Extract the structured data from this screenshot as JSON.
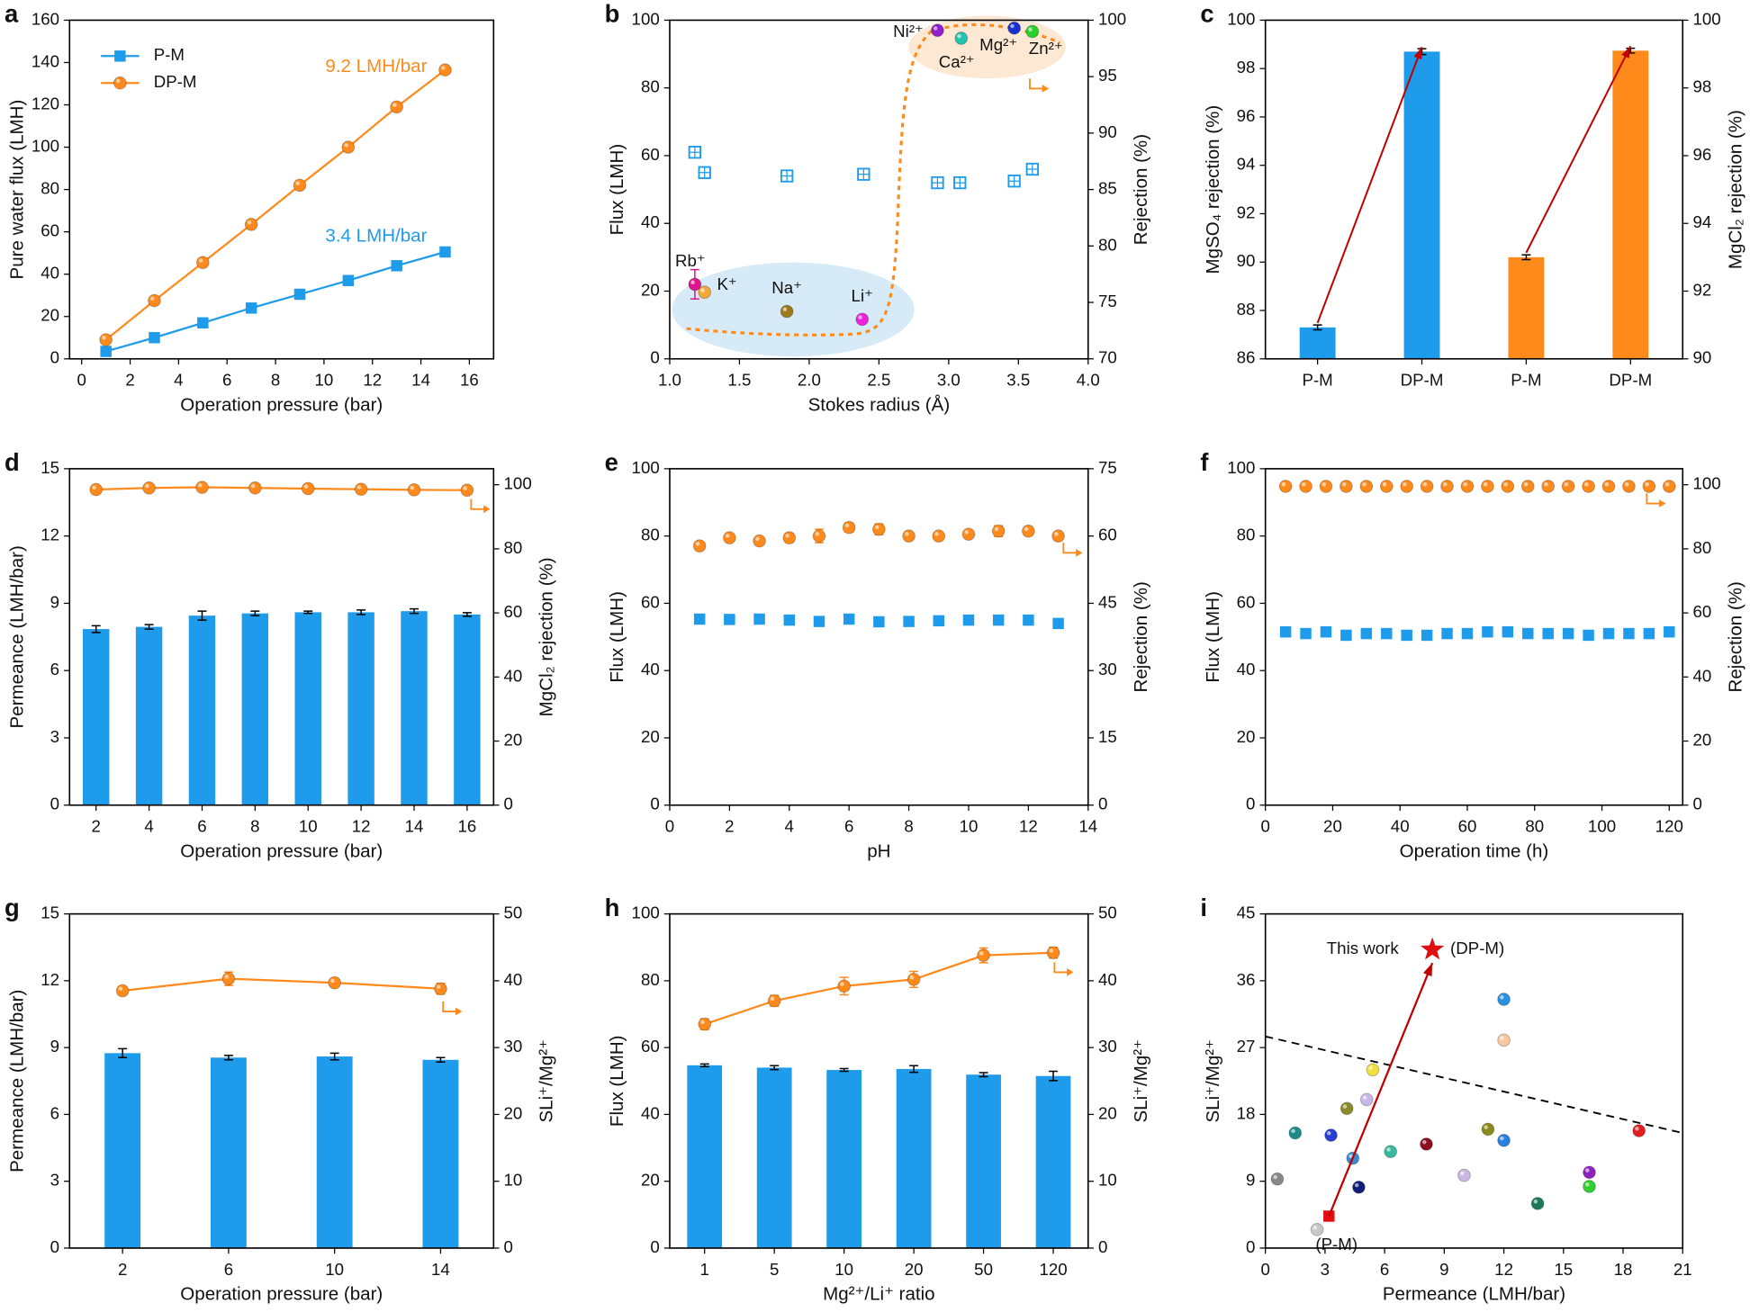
{
  "chart_data": [
    {
      "type": "line",
      "panel": "a",
      "xlabel": "Operation pressure (bar)",
      "ylabel": "Pure water flux (LMH)",
      "x": [
        1,
        3,
        5,
        7,
        9,
        11,
        13,
        15
      ],
      "xlim": [
        -0.5,
        17
      ],
      "xticks": [
        0,
        2,
        4,
        6,
        8,
        10,
        12,
        14,
        16
      ],
      "ylim": [
        0,
        160
      ],
      "yticks": [
        0,
        20,
        40,
        60,
        80,
        100,
        120,
        140,
        160
      ],
      "legend": "upper left",
      "series": [
        {
          "name": "P-M",
          "color": "#1e9bea",
          "marker": "s",
          "values": [
            3.5,
            10,
            17,
            24,
            30.5,
            37,
            44,
            50.5
          ]
        },
        {
          "name": "DP-M",
          "color": "#ff8a1c",
          "marker": "o",
          "values": [
            9,
            27.5,
            45.5,
            63.5,
            82,
            100,
            119,
            136.5
          ]
        }
      ],
      "annotations": [
        {
          "text": "9.2 LMH/bar",
          "color": "#ff8a1c"
        },
        {
          "text": "3.4 LMH/bar",
          "color": "#1e9bea"
        }
      ]
    },
    {
      "type": "scatter",
      "panel": "b",
      "xlabel": "Stokes radius (Å)",
      "ylabel": "Flux (LMH)",
      "y2label": "Rejection (%)",
      "xlim": [
        1.0,
        4.0
      ],
      "xticks": [
        {
          "value": 1.0,
          "label": "1.0"
        },
        {
          "value": 1.5,
          "label": "1.5"
        },
        {
          "value": 2.0,
          "label": "2.0"
        },
        {
          "value": 2.5,
          "label": "2.5"
        },
        {
          "value": 3.0,
          "label": "3.0"
        },
        {
          "value": 3.5,
          "label": "3.5"
        },
        {
          "value": 4.0,
          "label": "4.0"
        }
      ],
      "ylim": [
        0,
        100
      ],
      "yticks": [
        0,
        20,
        40,
        60,
        80,
        100
      ],
      "y2lim": [
        70,
        100
      ],
      "y2ticks": [
        70,
        75,
        80,
        85,
        90,
        95,
        100
      ],
      "series": [
        {
          "color": "#1e9bea",
          "marker": "s-open",
          "x": [
            1.18,
            1.25,
            1.84,
            2.39,
            2.92,
            3.08,
            3.47,
            3.6
          ],
          "values": [
            61,
            55,
            54,
            54.5,
            52,
            52,
            52.5,
            56
          ]
        },
        {
          "axis": "y2",
          "marker": "o",
          "x": [
            1.18,
            1.25,
            1.84,
            2.38,
            2.92,
            3.09,
            3.47,
            3.6
          ],
          "values": [
            76.6,
            75.9,
            74.2,
            73.5,
            99.1,
            98.4,
            99.3,
            99.0
          ],
          "errors": [
            1.3,
            null,
            null,
            null,
            null,
            null,
            null,
            null
          ],
          "colors": [
            "#e0158c",
            "#f2a93b",
            "#9c7a1a",
            "#ee22dd",
            "#8e1fcf",
            "#22c4b0",
            "#1a2fd0",
            "#2bd12b"
          ],
          "labels": [
            "Rb⁺",
            "K⁺",
            "Na⁺",
            "Li⁺",
            "Ni²⁺",
            "Ca²⁺",
            "Mg²⁺",
            "Zn²⁺"
          ]
        }
      ]
    },
    {
      "type": "bar",
      "panel": "c",
      "ylabel": "MgSO₄ rejection (%)",
      "y2label": "MgCl₂ rejection (%)",
      "categories": [
        "P-M",
        "DP-M",
        "P-M",
        "DP-M"
      ],
      "ylim": [
        86,
        100
      ],
      "yticks": [
        86,
        88,
        90,
        92,
        94,
        96,
        98,
        100
      ],
      "y2lim": [
        90,
        100
      ],
      "y2ticks": [
        90,
        92,
        94,
        96,
        98,
        100
      ],
      "series": [
        {
          "color": "#1e9bea",
          "values": [
            87.3,
            98.7,
            null,
            null
          ],
          "errors": [
            0.1,
            0.12,
            null,
            null
          ]
        },
        {
          "color": "#ff8a1c",
          "axis": "y2",
          "values": [
            null,
            null,
            93.0,
            99.1
          ],
          "errors": [
            null,
            null,
            0.07,
            0.07
          ]
        }
      ]
    },
    {
      "type": "bar",
      "panel": "d",
      "xlabel": "Operation pressure (bar)",
      "ylabel": "Permeance (LMH/bar)",
      "y2label": "MgCl₂ rejection (%)",
      "categories": [
        "2",
        "4",
        "6",
        "8",
        "10",
        "12",
        "14",
        "16"
      ],
      "ylim": [
        0,
        15
      ],
      "yticks": [
        0,
        3,
        6,
        9,
        12,
        15
      ],
      "y2lim": [
        0,
        105
      ],
      "y2ticks": [
        0,
        20,
        40,
        60,
        80,
        100
      ],
      "series": [
        {
          "color": "#1e9bea",
          "values": [
            7.85,
            7.95,
            8.45,
            8.55,
            8.6,
            8.6,
            8.65,
            8.5
          ],
          "errors": [
            0.15,
            0.1,
            0.2,
            0.1,
            0.05,
            0.1,
            0.1,
            0.08
          ]
        },
        {
          "type": "line",
          "marker": "o",
          "color": "#ff8a1c",
          "axis": "y2",
          "values": [
            98.5,
            99,
            99.2,
            99,
            98.8,
            98.6,
            98.4,
            98.3
          ]
        }
      ]
    },
    {
      "type": "scatter",
      "panel": "e",
      "xlabel": "pH",
      "ylabel": "Flux (LMH)",
      "y2label": "Rejection (%)",
      "x": [
        1,
        2,
        3,
        4,
        5,
        6,
        7,
        8,
        9,
        10,
        11,
        12,
        13
      ],
      "xlim": [
        0,
        14
      ],
      "xticks": [
        0,
        2,
        4,
        6,
        8,
        10,
        12,
        14
      ],
      "ylim": [
        0,
        100
      ],
      "yticks": [
        0,
        20,
        40,
        60,
        80,
        100
      ],
      "y2lim": [
        0,
        75
      ],
      "y2ticks": [
        0,
        15,
        30,
        45,
        60,
        75
      ],
      "series": [
        {
          "color": "#1e9bea",
          "marker": "s",
          "values": [
            55.3,
            55.2,
            55.3,
            55,
            54.6,
            55.3,
            54.5,
            54.6,
            54.8,
            55,
            55,
            55,
            54
          ]
        },
        {
          "color": "#ff8a1c",
          "marker": "o",
          "axis": "y2",
          "values": [
            57.8,
            59.6,
            58.9,
            59.6,
            60,
            61.9,
            61.5,
            60,
            60,
            60.4,
            61.1,
            61.1,
            60
          ],
          "errors": [
            0.5,
            0.6,
            0.5,
            1,
            1.5,
            1,
            1.2,
            0.5,
            0.5,
            0.5,
            1.2,
            1,
            0.5
          ]
        }
      ]
    },
    {
      "type": "scatter",
      "panel": "f",
      "xlabel": "Operation time (h)",
      "ylabel": "Flux (LMH)",
      "y2label": "Rejection (%)",
      "x": [
        6,
        12,
        18,
        24,
        30,
        36,
        42,
        48,
        54,
        60,
        66,
        72,
        78,
        84,
        90,
        96,
        102,
        108,
        114,
        120
      ],
      "xlim": [
        0,
        124
      ],
      "xticks": [
        0,
        20,
        40,
        60,
        80,
        100,
        120
      ],
      "ylim": [
        0,
        100
      ],
      "yticks": [
        0,
        20,
        40,
        60,
        80,
        100
      ],
      "y2lim": [
        0,
        105
      ],
      "y2ticks": [
        0,
        20,
        40,
        60,
        80,
        100
      ],
      "series": [
        {
          "color": "#1e9bea",
          "marker": "s",
          "values": [
            51.5,
            51,
            51.5,
            50.5,
            51,
            51,
            50.5,
            50.5,
            51,
            51,
            51.5,
            51.5,
            51,
            51,
            51,
            50.5,
            51,
            51,
            51,
            51.5
          ]
        },
        {
          "color": "#ff8a1c",
          "marker": "o",
          "axis": "y2",
          "values": [
            99.5,
            99.5,
            99.5,
            99.5,
            99.5,
            99.5,
            99.5,
            99.5,
            99.5,
            99.5,
            99.5,
            99.5,
            99.5,
            99.5,
            99.5,
            99.5,
            99.5,
            99.5,
            99.5,
            99.5
          ]
        }
      ]
    },
    {
      "type": "bar",
      "panel": "g",
      "xlabel": "Operation pressure (bar)",
      "ylabel": "Permeance (LMH/bar)",
      "y2label": "SLi⁺/Mg²⁺",
      "categories": [
        "2",
        "6",
        "10",
        "14"
      ],
      "ylim": [
        0,
        15
      ],
      "yticks": [
        0,
        3,
        6,
        9,
        12,
        15
      ],
      "y2lim": [
        0,
        50
      ],
      "y2ticks": [
        0,
        10,
        20,
        30,
        40,
        50
      ],
      "series": [
        {
          "color": "#1e9bea",
          "values": [
            8.75,
            8.55,
            8.6,
            8.45
          ],
          "errors": [
            0.2,
            0.1,
            0.15,
            0.1
          ]
        },
        {
          "type": "line",
          "marker": "o",
          "color": "#ff8a1c",
          "axis": "y2",
          "values": [
            38.5,
            40.3,
            39.7,
            38.8
          ],
          "errors": [
            0.5,
            1,
            0.5,
            0.8
          ]
        }
      ]
    },
    {
      "type": "bar",
      "panel": "h",
      "xlabel": "Mg²⁺/Li⁺ ratio",
      "ylabel": "Flux (LMH)",
      "y2label": "SLi⁺/Mg²⁺",
      "categories": [
        "1",
        "5",
        "10",
        "20",
        "50",
        "120"
      ],
      "ylim": [
        0,
        100
      ],
      "yticks": [
        0,
        20,
        40,
        60,
        80,
        100
      ],
      "y2lim": [
        0,
        50
      ],
      "y2ticks": [
        0,
        10,
        20,
        30,
        40,
        50
      ],
      "series": [
        {
          "color": "#1e9bea",
          "values": [
            54.7,
            54,
            53.3,
            53.6,
            51.9,
            51.5
          ],
          "errors": [
            0.4,
            0.6,
            0.4,
            1,
            0.6,
            1.4
          ]
        },
        {
          "type": "line",
          "marker": "o",
          "color": "#ff8a1c",
          "axis": "y2",
          "values": [
            33.5,
            37,
            39.2,
            40.2,
            43.8,
            44.2
          ],
          "errors": [
            0.8,
            0.8,
            1.3,
            1.2,
            1.1,
            0.8
          ]
        }
      ]
    },
    {
      "type": "scatter",
      "panel": "i",
      "xlabel": "Permeance (LMH/bar)",
      "ylabel": "SLi⁺/Mg²⁺",
      "xlim": [
        0,
        21
      ],
      "xticks": [
        0,
        3,
        6,
        9,
        12,
        15,
        18,
        21
      ],
      "ylim": [
        0,
        45
      ],
      "yticks": [
        0,
        9,
        18,
        27,
        36,
        45
      ],
      "trend_line": {
        "x": [
          0,
          21
        ],
        "y": [
          28.5,
          15.5
        ]
      },
      "series": [
        {
          "marker": "o",
          "x": [
            0.6,
            1.5,
            2.6,
            3.3,
            4.1,
            4.4,
            4.7,
            5.1,
            5.4,
            6.3,
            8.1,
            10.0,
            11.2,
            12,
            12,
            12,
            13.7,
            16.3,
            16.3,
            18.8
          ],
          "values": [
            9.3,
            15.5,
            2.5,
            15.2,
            18.8,
            12.1,
            8.2,
            20,
            24,
            13,
            14,
            9.8,
            16,
            14.5,
            33.5,
            28,
            6,
            10.2,
            8.3,
            15.8
          ],
          "colors": [
            "#888888",
            "#1f8a8a",
            "#c8c8c8",
            "#2a3fd0",
            "#8a8a2a",
            "#3a8ad0",
            "#10207a",
            "#c8b8e8",
            "#f0e040",
            "#3ab8a0",
            "#8a1020",
            "#c8b8e0",
            "#8a8a1a",
            "#2a80e0",
            "#2a90e0",
            "#f8c8a0",
            "#1a7a5a",
            "#9020c0",
            "#30d030",
            "#e02020"
          ]
        },
        {
          "marker": "s",
          "color": "#e01010",
          "x": [
            3.2
          ],
          "values": [
            4.3
          ]
        },
        {
          "marker": "star",
          "color": "#e01010",
          "x": [
            8.4
          ],
          "values": [
            40.2
          ]
        }
      ],
      "annotations": [
        {
          "text": "This work"
        },
        {
          "text": "(DP-M)"
        },
        {
          "text": "(P-M)"
        }
      ]
    }
  ]
}
